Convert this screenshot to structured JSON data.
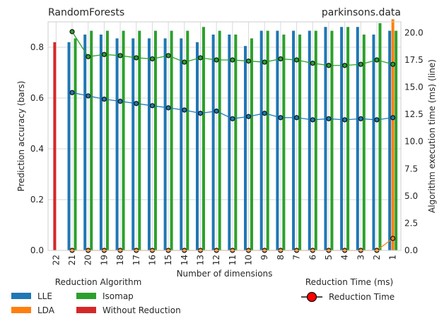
{
  "chart_data": {
    "type": "bar",
    "title_left": "RandomForests",
    "title_right": "parkinsons.data",
    "xlabel": "Number of dimensions",
    "ylabel_left": "Prediction accuracy (bars)",
    "ylabel_right": "Algorithm execution time (ms) (line)",
    "categories": [
      "22",
      "21",
      "20",
      "19",
      "18",
      "17",
      "16",
      "15",
      "14",
      "13",
      "12",
      "11",
      "10",
      "9",
      "8",
      "7",
      "6",
      "5",
      "4",
      "3",
      "2",
      "1"
    ],
    "ylim_left": [
      0,
      0.9
    ],
    "yticks_left": [
      "0.0",
      "0.2",
      "0.4",
      "0.6",
      "0.8"
    ],
    "ylim_right": [
      0,
      21
    ],
    "yticks_right": [
      "0.0",
      "2.5",
      "5.0",
      "7.5",
      "10.0",
      "12.5",
      "15.0",
      "17.5",
      "20.0"
    ],
    "grid": true,
    "bar_series": [
      {
        "name": "LLE",
        "color": "#1f77b4",
        "values": [
          null,
          0.82,
          0.85,
          0.85,
          0.835,
          0.835,
          0.835,
          0.835,
          0.835,
          0.82,
          0.85,
          0.85,
          0.805,
          0.865,
          0.865,
          0.865,
          0.865,
          0.88,
          0.88,
          0.88,
          0.85,
          0.865
        ]
      },
      {
        "name": "LDA",
        "color": "#ff7f0e",
        "values": [
          null,
          null,
          null,
          null,
          null,
          null,
          null,
          null,
          null,
          null,
          null,
          null,
          null,
          null,
          null,
          null,
          null,
          null,
          null,
          null,
          null,
          0.91
        ]
      },
      {
        "name": "Isomap",
        "color": "#2ca02c",
        "values": [
          null,
          0.835,
          0.865,
          0.865,
          0.865,
          0.865,
          0.865,
          0.865,
          0.865,
          0.88,
          0.865,
          0.85,
          0.835,
          0.865,
          0.85,
          0.85,
          0.865,
          0.865,
          0.88,
          0.85,
          0.895,
          0.865
        ]
      },
      {
        "name": "Without Reduction",
        "color": "#d62728",
        "values": [
          0.82,
          null,
          null,
          null,
          null,
          null,
          null,
          null,
          null,
          null,
          null,
          null,
          null,
          null,
          null,
          null,
          null,
          null,
          null,
          null,
          null,
          null
        ]
      }
    ],
    "line_series": [
      {
        "name": "LLE",
        "color": "#1f77b4",
        "values": [
          null,
          14.5,
          14.2,
          13.9,
          13.7,
          13.5,
          13.3,
          13.1,
          12.9,
          12.6,
          12.8,
          12.1,
          12.3,
          12.6,
          12.2,
          12.2,
          12.0,
          12.1,
          12.0,
          12.1,
          12.0,
          12.2
        ]
      },
      {
        "name": "Isomap",
        "color": "#2ca02c",
        "values": [
          null,
          20.1,
          17.8,
          18.0,
          17.9,
          17.7,
          17.6,
          17.9,
          17.3,
          17.7,
          17.5,
          17.5,
          17.4,
          17.3,
          17.6,
          17.5,
          17.2,
          17.0,
          17.0,
          17.1,
          17.5,
          17.1
        ]
      },
      {
        "name": "LDA",
        "color": "#ff7f0e",
        "values": [
          null,
          0,
          0,
          0,
          0,
          0,
          0,
          0,
          0,
          0,
          0,
          0,
          0,
          0,
          0,
          0,
          0,
          0,
          0,
          0,
          0,
          1.1
        ]
      }
    ],
    "legend_algo_title": "Reduction Algorithm",
    "legend_algo_items": [
      {
        "label": "LLE",
        "color": "#1f77b4"
      },
      {
        "label": "LDA",
        "color": "#ff7f0e"
      },
      {
        "label": "Isomap",
        "color": "#2ca02c"
      },
      {
        "label": "Without Reduction",
        "color": "#d62728"
      }
    ],
    "legend_time_title": "Reduction Time (ms)",
    "legend_time_label": "Reduction Time",
    "legend_placement": "bottom"
  }
}
